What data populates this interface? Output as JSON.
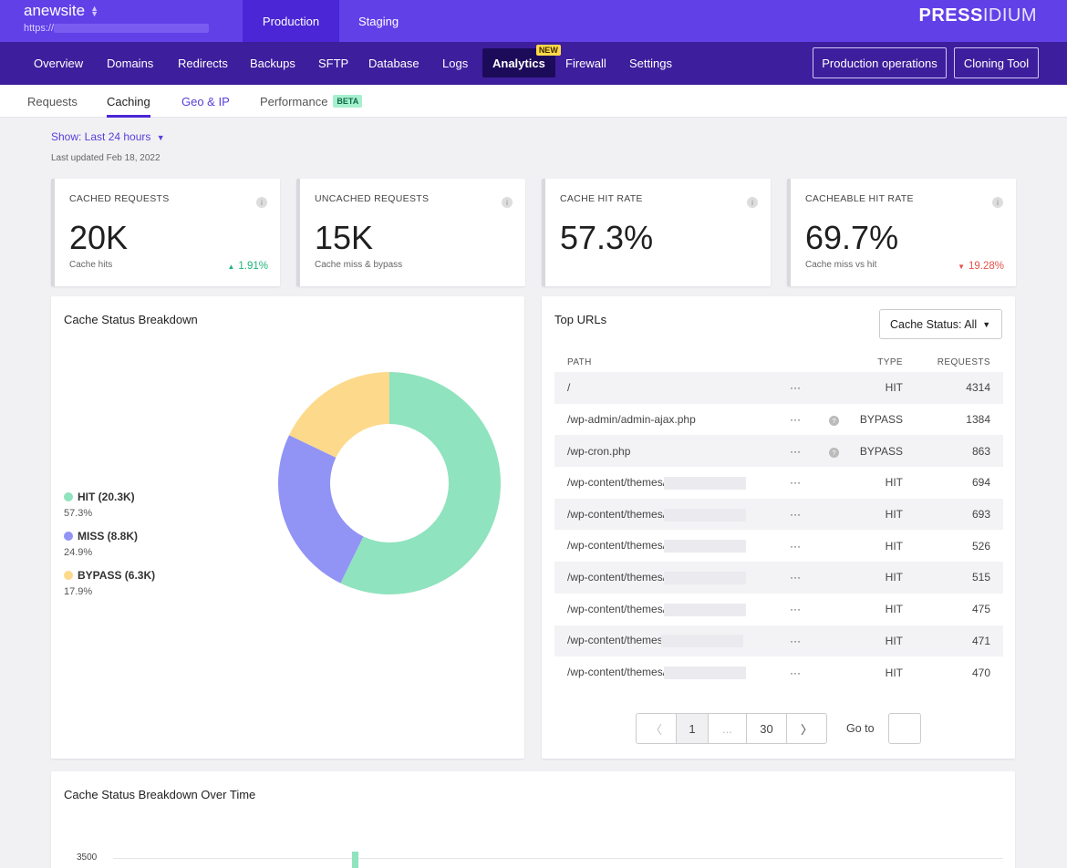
{
  "site": {
    "name": "anewsite",
    "url_prefix": "https://"
  },
  "env_tabs": [
    {
      "label": "Production"
    },
    {
      "label": "Staging"
    }
  ],
  "brand": {
    "bold": "PRESS",
    "light": "IDIUM"
  },
  "nav": {
    "items": [
      {
        "label": "Overview"
      },
      {
        "label": "Domains"
      },
      {
        "label": "Redirects"
      },
      {
        "label": "Backups"
      },
      {
        "label": "SFTP"
      },
      {
        "label": "Database"
      },
      {
        "label": "Logs"
      },
      {
        "label": "Analytics"
      },
      {
        "label": "Firewall"
      },
      {
        "label": "Settings"
      }
    ],
    "new_badge": "NEW",
    "buttons": {
      "production_ops": "Production operations",
      "cloning": "Cloning Tool"
    }
  },
  "subtabs": [
    {
      "label": "Requests"
    },
    {
      "label": "Caching"
    },
    {
      "label": "Geo & IP"
    },
    {
      "label": "Performance"
    }
  ],
  "beta_badge": "BETA",
  "filters": {
    "show": "Show: Last 24 hours",
    "updated": "Last updated Feb 18, 2022"
  },
  "stats": [
    {
      "label": "CACHED REQUESTS",
      "value": "20K",
      "sub": "Cache hits",
      "delta": "1.91%"
    },
    {
      "label": "UNCACHED REQUESTS",
      "value": "15K",
      "sub": "Cache miss & bypass",
      "delta": ""
    },
    {
      "label": "CACHE HIT RATE",
      "value": "57.3%",
      "sub": "",
      "delta": ""
    },
    {
      "label": "CACHEABLE HIT RATE",
      "value": "69.7%",
      "sub": "Cache miss vs hit",
      "delta": "19.28%"
    }
  ],
  "breakdown": {
    "title": "Cache Status Breakdown",
    "legend": [
      {
        "label": "HIT (20.3K)",
        "pct": "57.3%"
      },
      {
        "label": "MISS (8.8K)",
        "pct": "24.9%"
      },
      {
        "label": "BYPASS (6.3K)",
        "pct": "17.9%"
      }
    ]
  },
  "chart_data": {
    "type": "pie",
    "title": "Cache Status Breakdown",
    "categories": [
      "HIT",
      "MISS",
      "BYPASS"
    ],
    "values": [
      57.3,
      24.9,
      17.9
    ],
    "colors": [
      "#8fe3be",
      "#9193f5",
      "#fdd98b"
    ]
  },
  "top_urls": {
    "title": "Top URLs",
    "filter": "Cache Status: All",
    "headers": {
      "path": "PATH",
      "type": "TYPE",
      "requests": "REQUESTS"
    },
    "rows": [
      {
        "path": "/",
        "type": "HIT",
        "requests": "4314"
      },
      {
        "path": "/wp-admin/admin-ajax.php",
        "type": "BYPASS",
        "requests": "1384"
      },
      {
        "path": "/wp-cron.php",
        "type": "BYPASS",
        "requests": "863"
      },
      {
        "path": "/wp-content/themes/",
        "type": "HIT",
        "requests": "694"
      },
      {
        "path": "/wp-content/themes/",
        "type": "HIT",
        "requests": "693"
      },
      {
        "path": "/wp-content/themes/",
        "type": "HIT",
        "requests": "526"
      },
      {
        "path": "/wp-content/themes/",
        "type": "HIT",
        "requests": "515"
      },
      {
        "path": "/wp-content/themes/",
        "type": "HIT",
        "requests": "475"
      },
      {
        "path": "/wp-content/themes",
        "type": "HIT",
        "requests": "471"
      },
      {
        "path": "/wp-content/themes/",
        "type": "HIT",
        "requests": "470"
      }
    ],
    "pager": {
      "current": "1",
      "ellipsis": "...",
      "last": "30",
      "goto": "Go to"
    }
  },
  "over_time": {
    "title": "Cache Status Breakdown Over Time",
    "y_tick": "3500"
  }
}
